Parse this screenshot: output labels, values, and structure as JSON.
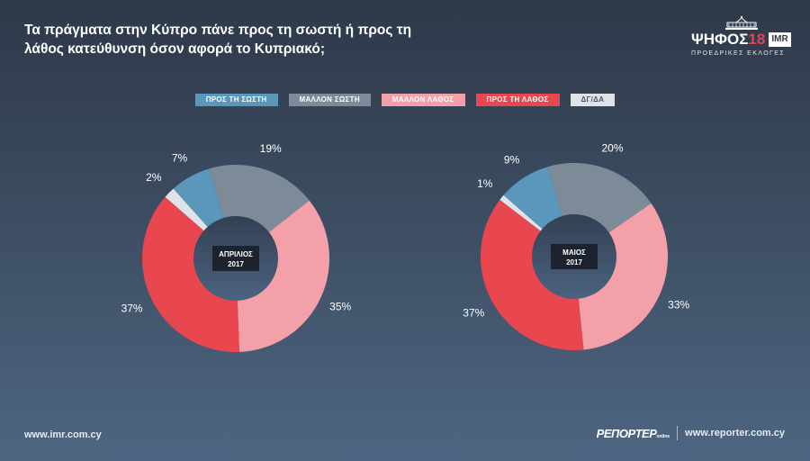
{
  "title": "Τα πράγματα στην Κύπρο πάνε προς τη σωστή ή προς τη λάθος κατεύθυνση όσον αφορά το Κυπριακό;",
  "logo": {
    "word": "ΨΗΦΟΣ",
    "number": "18",
    "imr": "IMR",
    "subtitle": "ΠΡΟΕΔΡΙΚΕΣ ΕΚΛΟΓΕΣ"
  },
  "colors": {
    "ΠΡΟΣ ΤΗ ΣΩΣΤΗ": "#5b96bb",
    "ΜΑΛΛΟΝ ΣΩΣΤΗ": "#7d8b99",
    "ΜΑΛΛΟΝ ΛΑΘΟΣ": "#f3a0a8",
    "ΠΡΟΣ ΤΗ ΛΑΘΟΣ": "#e8474f",
    "ΔΓ/ΔΑ": "#dfe3e8"
  },
  "chart_data": [
    {
      "type": "pie",
      "center_label": [
        "ΑΠΡΙΛΙΟΣ",
        "2017"
      ],
      "labels": [
        "ΠΡΟΣ ΤΗ ΣΩΣΤΗ",
        "ΜΑΛΛΟΝ ΣΩΣΤΗ",
        "ΜΑΛΛΟΝ ΛΑΘΟΣ",
        "ΠΡΟΣ ΤΗ ΛΑΘΟΣ",
        "ΔΓ/ΔΑ"
      ],
      "values": [
        7,
        19,
        35,
        37,
        2
      ],
      "value_labels": [
        "7%",
        "19%",
        "35%",
        "37%",
        "2%"
      ]
    },
    {
      "type": "pie",
      "center_label": [
        "ΜΑΙΟΣ",
        "2017"
      ],
      "labels": [
        "ΠΡΟΣ ΤΗ ΣΩΣΤΗ",
        "ΜΑΛΛΟΝ ΣΩΣΤΗ",
        "ΜΑΛΛΟΝ ΛΑΘΟΣ",
        "ΠΡΟΣ ΤΗ ΛΑΘΟΣ",
        "ΔΓ/ΔΑ"
      ],
      "values": [
        9,
        20,
        33,
        37,
        1
      ],
      "value_labels": [
        "9%",
        "20%",
        "33%",
        "37%",
        "1%"
      ]
    }
  ],
  "footer": {
    "left": "www.imr.com.cy",
    "brand": "ΡΕΠΟΡΤΕΡ",
    "brand_suffix": "online",
    "right": "www.reporter.com.cy"
  }
}
